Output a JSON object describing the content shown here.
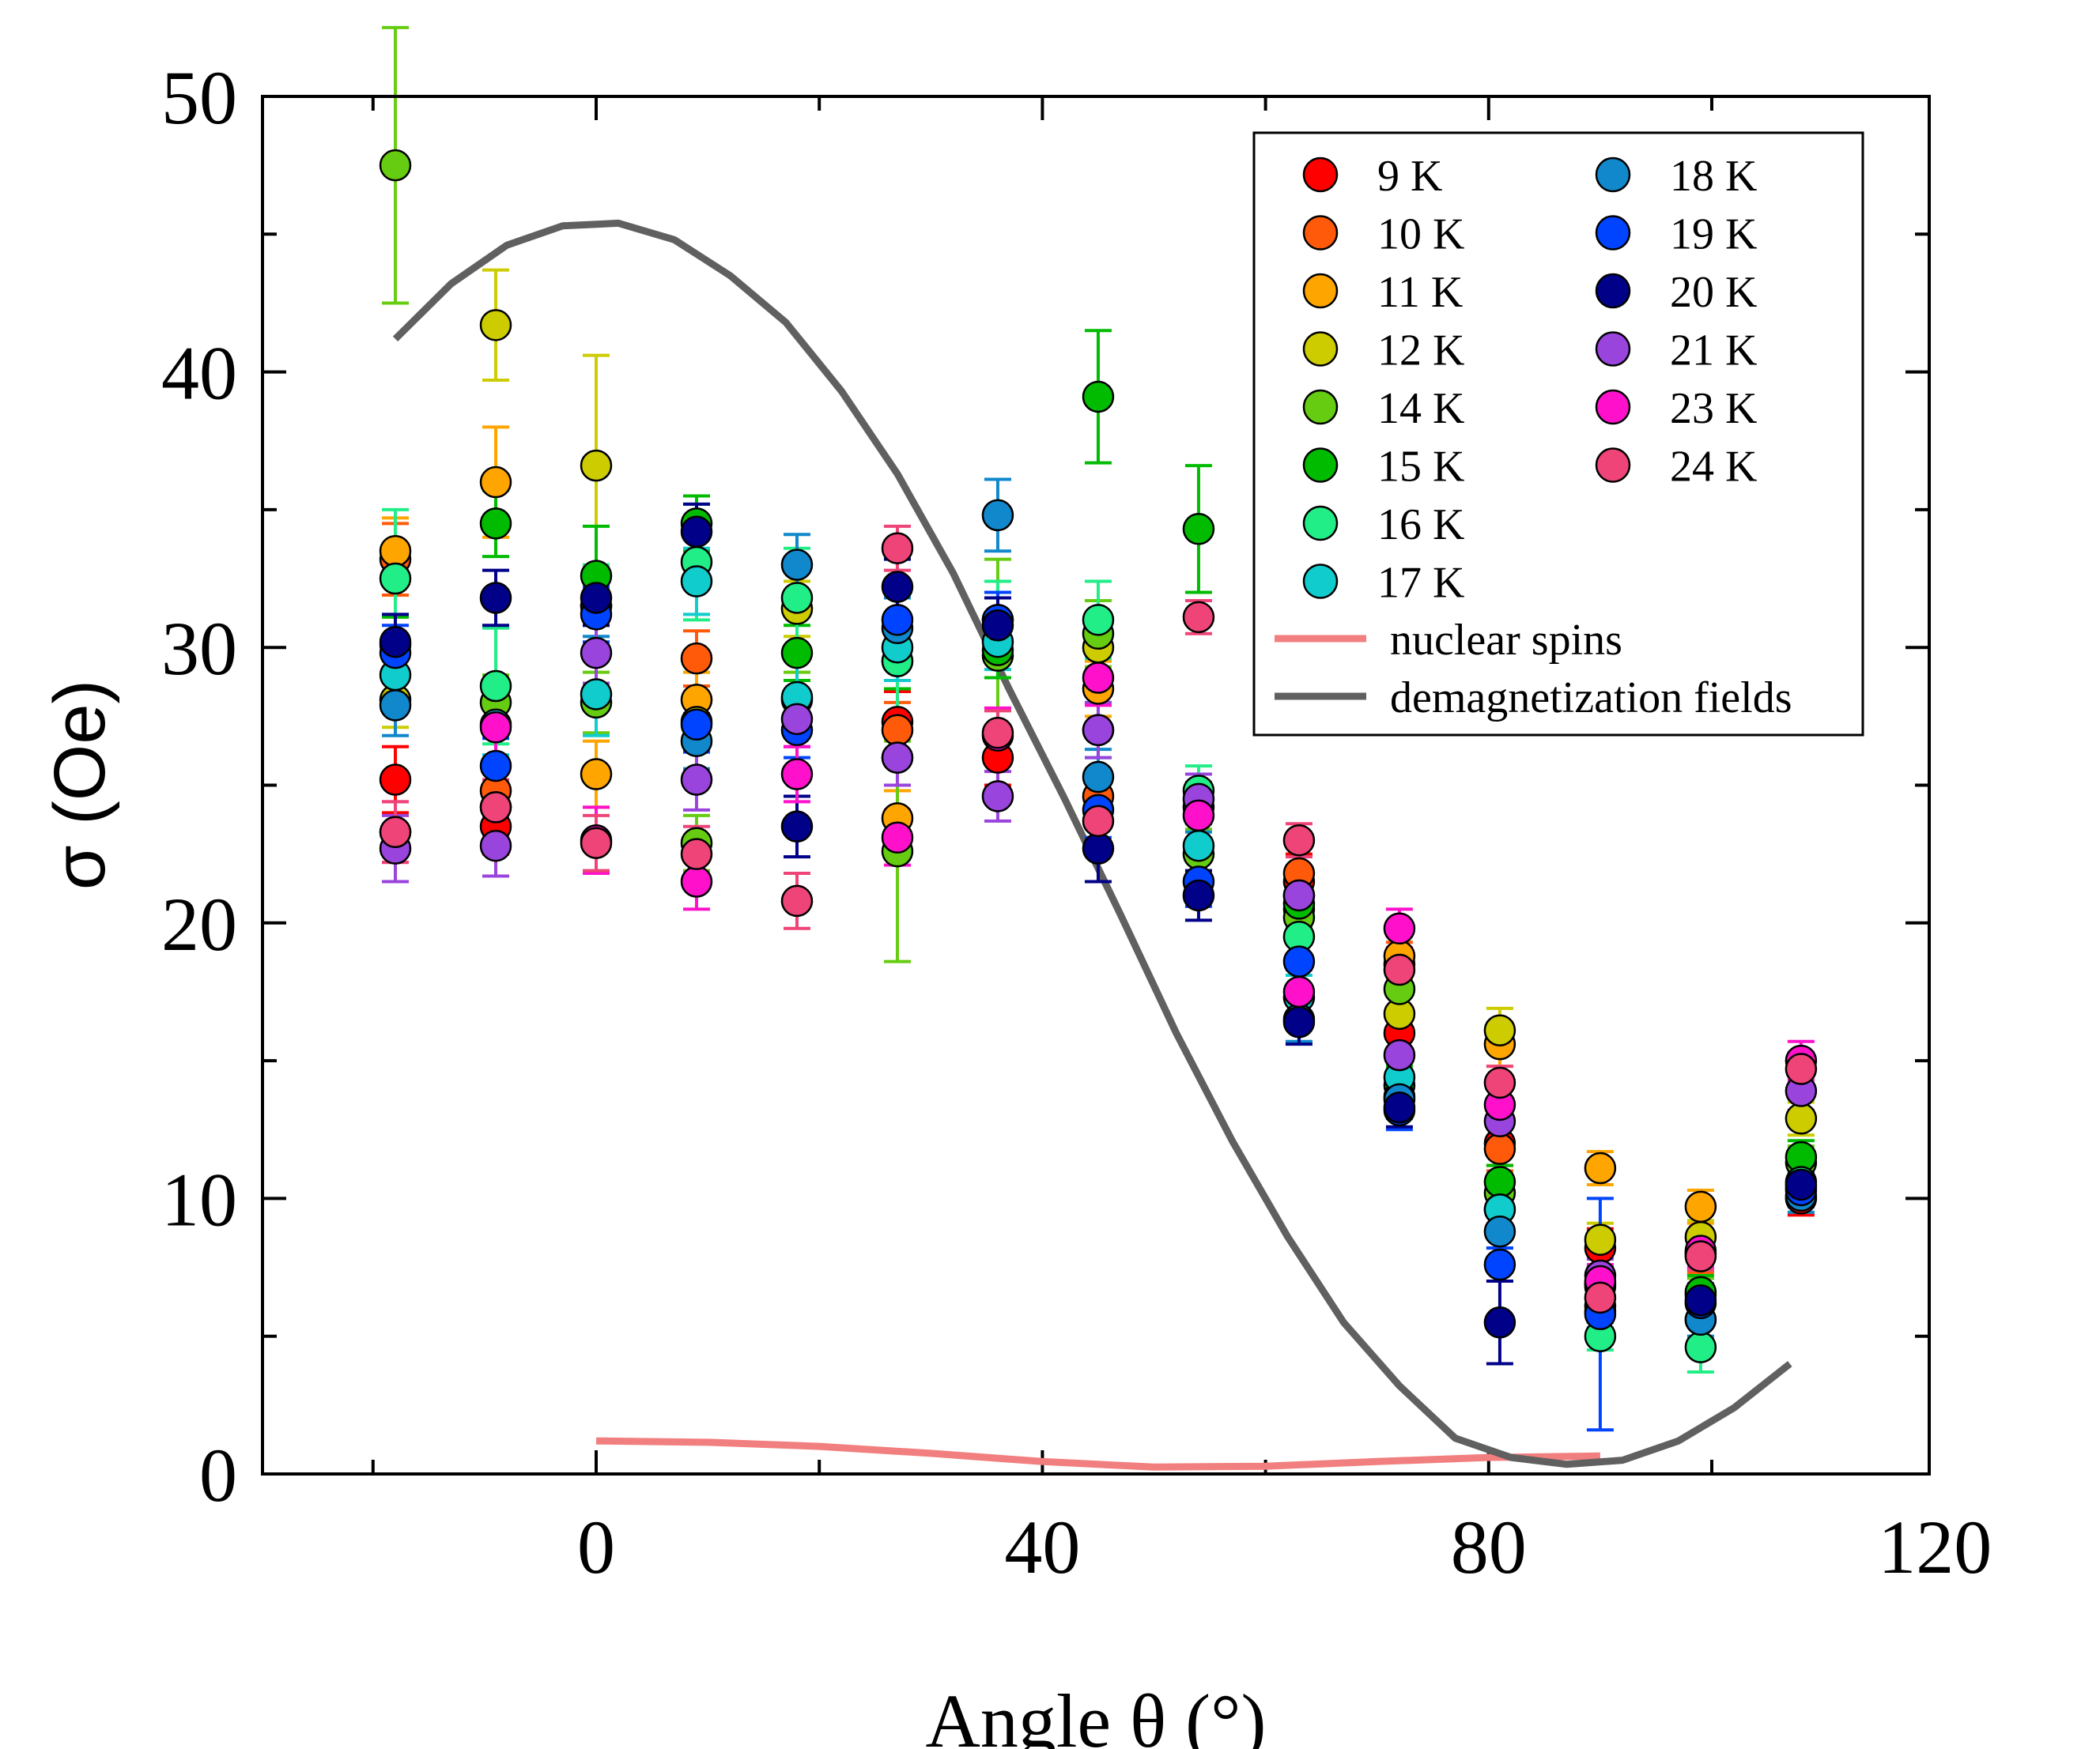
{
  "chart_data": {
    "type": "scatter",
    "title": "",
    "xlabel": "Angle θ (°)",
    "ylabel": "σ (Oe)",
    "xlim": [
      -15,
      120
    ],
    "ylim": [
      0,
      50
    ],
    "xticks": [
      0,
      40,
      80,
      120
    ],
    "yticks": [
      0,
      10,
      20,
      30,
      40,
      50
    ],
    "xtick_labels": [
      "0",
      "40",
      "80",
      "120"
    ],
    "ytick_labels": [
      "0",
      "10",
      "20",
      "30",
      "40",
      "50"
    ],
    "grid": false,
    "legend_position": "top-right",
    "series": [
      {
        "name": "9 K",
        "color": "#ff0000",
        "points": [
          [
            -18,
            25.2,
            1.2
          ],
          [
            -9,
            23.5,
            1.0
          ],
          [
            27,
            27.3,
            1.1
          ],
          [
            36,
            26.0,
            1.0
          ],
          [
            63,
            21.5,
            1.0
          ],
          [
            72,
            16.0,
            0.8
          ],
          [
            81,
            12.0,
            0.8
          ],
          [
            90,
            8.2,
            0.7
          ],
          [
            108,
            10.0,
            0.6
          ]
        ]
      },
      {
        "name": "10 K",
        "color": "#ff5a0a",
        "points": [
          [
            -18,
            33.2,
            1.3
          ],
          [
            -9,
            24.8,
            1.1
          ],
          [
            9,
            29.6,
            1.0
          ],
          [
            27,
            27.0,
            1.0
          ],
          [
            45,
            24.6,
            1.0
          ],
          [
            63,
            21.8,
            1.0
          ],
          [
            72,
            18.5,
            0.8
          ],
          [
            81,
            11.8,
            0.8
          ],
          [
            99,
            8.0,
            0.7
          ]
        ]
      },
      {
        "name": "11 K",
        "color": "#ffa500",
        "points": [
          [
            -18,
            33.5,
            1.2
          ],
          [
            -9,
            36.0,
            2.0
          ],
          [
            0,
            25.4,
            1.2
          ],
          [
            9,
            28.1,
            1.0
          ],
          [
            27,
            23.8,
            1.0
          ],
          [
            45,
            28.5,
            1.0
          ],
          [
            63,
            21.0,
            0.9
          ],
          [
            72,
            18.8,
            0.8
          ],
          [
            81,
            15.6,
            0.8
          ],
          [
            90,
            11.1,
            0.6
          ],
          [
            99,
            9.7,
            0.6
          ]
        ]
      },
      {
        "name": "12 K",
        "color": "#cccc00",
        "points": [
          [
            -18,
            28.1,
            1.0
          ],
          [
            -9,
            41.7,
            2.0
          ],
          [
            0,
            36.6,
            4.0
          ],
          [
            9,
            27.3,
            1.0
          ],
          [
            18,
            31.4,
            1.0
          ],
          [
            27,
            26.0,
            1.0
          ],
          [
            45,
            30.0,
            1.0
          ],
          [
            63,
            20.5,
            0.9
          ],
          [
            72,
            16.7,
            0.8
          ],
          [
            81,
            16.1,
            0.8
          ],
          [
            90,
            8.5,
            0.6
          ],
          [
            99,
            8.6,
            0.6
          ],
          [
            108,
            12.9,
            0.6
          ]
        ]
      },
      {
        "name": "14 K",
        "color": "#66cc11",
        "points": [
          [
            -18,
            47.5,
            5.0
          ],
          [
            -9,
            28.0,
            1.0
          ],
          [
            0,
            28.0,
            1.1
          ],
          [
            9,
            22.9,
            1.0
          ],
          [
            18,
            28.1,
            1.0
          ],
          [
            27,
            22.6,
            4.0
          ],
          [
            36,
            29.7,
            3.5
          ],
          [
            45,
            30.5,
            1.2
          ],
          [
            54,
            22.5,
            0.9
          ],
          [
            63,
            20.2,
            0.9
          ],
          [
            72,
            17.6,
            0.8
          ],
          [
            81,
            10.2,
            0.7
          ],
          [
            90,
            6.9,
            0.6
          ],
          [
            99,
            6.5,
            0.6
          ],
          [
            108,
            11.3,
            0.6
          ]
        ]
      },
      {
        "name": "15 K",
        "color": "#00bb00",
        "points": [
          [
            -18,
            30.1,
            1.0
          ],
          [
            -9,
            34.5,
            1.2
          ],
          [
            0,
            32.6,
            1.8
          ],
          [
            9,
            34.5,
            1.0
          ],
          [
            18,
            29.8,
            1.0
          ],
          [
            27,
            29.5,
            1.0
          ],
          [
            36,
            29.9,
            1.0
          ],
          [
            45,
            39.1,
            2.4
          ],
          [
            54,
            34.3,
            2.3
          ],
          [
            63,
            20.7,
            0.9
          ],
          [
            72,
            14.1,
            0.7
          ],
          [
            81,
            10.6,
            0.6
          ],
          [
            90,
            6.8,
            0.6
          ],
          [
            99,
            6.6,
            0.6
          ],
          [
            108,
            11.5,
            0.6
          ]
        ]
      },
      {
        "name": "16 K",
        "color": "#22ee88",
        "points": [
          [
            -18,
            32.5,
            2.5
          ],
          [
            -9,
            28.6,
            2.1
          ],
          [
            0,
            31.5,
            1.5
          ],
          [
            9,
            33.1,
            2.1
          ],
          [
            18,
            31.8,
            1.8
          ],
          [
            27,
            29.5,
            2.5
          ],
          [
            36,
            31.0,
            1.4
          ],
          [
            45,
            31.0,
            1.4
          ],
          [
            54,
            24.8,
            0.9
          ],
          [
            63,
            19.5,
            0.9
          ],
          [
            72,
            13.7,
            0.7
          ],
          [
            81,
            9.6,
            0.7
          ],
          [
            90,
            5.0,
            0.5
          ],
          [
            99,
            4.6,
            0.9
          ],
          [
            108,
            10.6,
            0.6
          ]
        ]
      },
      {
        "name": "17 K",
        "color": "#11cccc",
        "points": [
          [
            -18,
            29.0,
            1.0
          ],
          [
            -9,
            27.2,
            1.1
          ],
          [
            0,
            28.3,
            1.5
          ],
          [
            9,
            32.4,
            1.2
          ],
          [
            18,
            28.2,
            1.4
          ],
          [
            27,
            30.0,
            1.2
          ],
          [
            36,
            30.2,
            1.0
          ],
          [
            45,
            27.0,
            1.0
          ],
          [
            54,
            22.8,
            0.9
          ],
          [
            63,
            17.3,
            0.8
          ],
          [
            72,
            14.4,
            0.7
          ],
          [
            81,
            9.6,
            0.6
          ],
          [
            90,
            6.1,
            0.6
          ],
          [
            99,
            5.6,
            0.6
          ],
          [
            108,
            10.4,
            0.6
          ]
        ]
      },
      {
        "name": "18 K",
        "color": "#1188cc",
        "points": [
          [
            -18,
            27.9,
            1.1
          ],
          [
            -9,
            24.2,
            1.0
          ],
          [
            0,
            31.5,
            1.1
          ],
          [
            9,
            26.6,
            1.0
          ],
          [
            18,
            33.0,
            1.1
          ],
          [
            27,
            30.7,
            1.1
          ],
          [
            36,
            34.8,
            1.3
          ],
          [
            45,
            25.3,
            1.0
          ],
          [
            54,
            24.2,
            0.9
          ],
          [
            63,
            16.5,
            0.8
          ],
          [
            72,
            13.6,
            0.7
          ],
          [
            81,
            8.8,
            0.6
          ],
          [
            90,
            5.9,
            0.6
          ],
          [
            99,
            5.6,
            0.6
          ],
          [
            108,
            10.1,
            0.6
          ]
        ]
      },
      {
        "name": "19 K",
        "color": "#0044ff",
        "points": [
          [
            -18,
            29.8,
            1.0
          ],
          [
            -9,
            25.7,
            1.0
          ],
          [
            0,
            31.2,
            1.0
          ],
          [
            9,
            27.2,
            1.0
          ],
          [
            18,
            27.0,
            1.0
          ],
          [
            27,
            31.0,
            1.0
          ],
          [
            36,
            31.0,
            1.0
          ],
          [
            45,
            24.1,
            1.0
          ],
          [
            54,
            21.5,
            0.9
          ],
          [
            63,
            18.6,
            0.9
          ],
          [
            72,
            13.2,
            0.7
          ],
          [
            81,
            7.6,
            0.6
          ],
          [
            90,
            5.8,
            4.2
          ],
          [
            99,
            6.2,
            0.6
          ],
          [
            108,
            10.3,
            0.6
          ]
        ]
      },
      {
        "name": "20 K",
        "color": "#000088",
        "points": [
          [
            -18,
            30.2,
            1.0
          ],
          [
            -9,
            31.8,
            1.0
          ],
          [
            0,
            31.8,
            1.0
          ],
          [
            9,
            34.2,
            1.0
          ],
          [
            18,
            23.5,
            1.1
          ],
          [
            27,
            32.2,
            1.0
          ],
          [
            36,
            30.8,
            1.0
          ],
          [
            45,
            22.7,
            1.2
          ],
          [
            54,
            21.0,
            0.9
          ],
          [
            63,
            16.4,
            0.8
          ],
          [
            72,
            13.3,
            0.7
          ],
          [
            81,
            5.5,
            1.5
          ],
          [
            90,
            6.9,
            0.6
          ],
          [
            99,
            6.3,
            0.6
          ],
          [
            108,
            10.5,
            0.6
          ]
        ]
      },
      {
        "name": "21 K",
        "color": "#9944dd",
        "points": [
          [
            -18,
            22.7,
            1.2
          ],
          [
            -9,
            22.8,
            1.1
          ],
          [
            0,
            29.8,
            1.1
          ],
          [
            9,
            25.2,
            1.1
          ],
          [
            18,
            27.4,
            1.0
          ],
          [
            27,
            26.0,
            1.0
          ],
          [
            36,
            24.6,
            0.9
          ],
          [
            45,
            27.0,
            1.0
          ],
          [
            54,
            24.5,
            0.9
          ],
          [
            63,
            21.0,
            0.9
          ],
          [
            72,
            15.2,
            0.7
          ],
          [
            81,
            12.8,
            0.7
          ],
          [
            90,
            7.2,
            0.6
          ],
          [
            99,
            8.0,
            0.6
          ],
          [
            108,
            13.9,
            0.7
          ]
        ]
      },
      {
        "name": "23 K",
        "color": "#ff11cc",
        "points": [
          [
            -18,
            23.3,
            1.1
          ],
          [
            -9,
            27.1,
            1.2
          ],
          [
            0,
            23.0,
            1.2
          ],
          [
            9,
            21.5,
            1.0
          ],
          [
            18,
            25.4,
            1.0
          ],
          [
            27,
            23.1,
            1.0
          ],
          [
            36,
            26.8,
            1.0
          ],
          [
            45,
            28.9,
            1.0
          ],
          [
            54,
            23.9,
            0.9
          ],
          [
            63,
            17.5,
            0.8
          ],
          [
            72,
            19.8,
            0.7
          ],
          [
            81,
            13.4,
            0.7
          ],
          [
            90,
            7.0,
            0.6
          ],
          [
            99,
            8.1,
            0.6
          ],
          [
            108,
            15.0,
            0.7
          ]
        ]
      },
      {
        "name": "24 K",
        "color": "#ee4477",
        "points": [
          [
            -18,
            23.3,
            1.1
          ],
          [
            -9,
            24.2,
            1.0
          ],
          [
            0,
            22.9,
            1.0
          ],
          [
            9,
            22.5,
            1.0
          ],
          [
            18,
            20.8,
            1.0
          ],
          [
            27,
            33.6,
            0.8
          ],
          [
            36,
            26.9,
            0.8
          ],
          [
            45,
            23.7,
            0.8
          ],
          [
            54,
            31.1,
            0.6
          ],
          [
            63,
            23.0,
            0.6
          ],
          [
            72,
            18.3,
            0.6
          ],
          [
            81,
            14.2,
            0.6
          ],
          [
            90,
            6.4,
            0.5
          ],
          [
            99,
            7.9,
            0.5
          ],
          [
            108,
            14.7,
            0.6
          ]
        ]
      }
    ],
    "lines": [
      {
        "name": "nuclear spins",
        "color": "#f27f7f",
        "x": [
          0,
          10,
          20,
          30,
          40,
          50,
          60,
          70,
          80,
          90
        ],
        "y": [
          1.2,
          1.15,
          1.0,
          0.75,
          0.45,
          0.25,
          0.28,
          0.45,
          0.6,
          0.65
        ]
      },
      {
        "name": "demagnetization fields",
        "color": "#606060",
        "x": [
          -18,
          -13,
          -8,
          -3,
          2,
          7,
          12,
          17,
          22,
          27,
          32,
          37,
          42,
          47,
          52,
          57,
          62,
          67,
          72,
          77,
          82,
          87,
          92,
          97,
          102,
          107
        ],
        "y": [
          41.2,
          43.2,
          44.6,
          45.3,
          45.4,
          44.8,
          43.5,
          41.8,
          39.3,
          36.3,
          32.7,
          28.5,
          24.5,
          20.3,
          16.0,
          12.1,
          8.6,
          5.5,
          3.2,
          1.3,
          0.6,
          0.35,
          0.5,
          1.2,
          2.4,
          4.0
        ]
      }
    ]
  }
}
